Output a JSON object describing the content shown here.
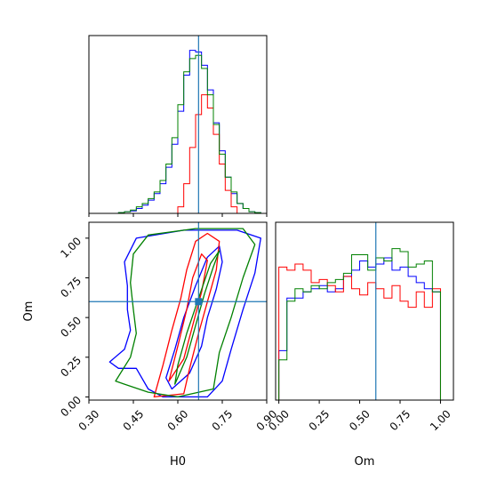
{
  "chart_data": {
    "type": "corner",
    "title": "",
    "parameters": [
      "H0",
      "Om"
    ],
    "truths": {
      "H0": 0.67,
      "Om": 0.6
    },
    "truth_color": "#1f77b4",
    "series": [
      {
        "color": "#0000ff"
      },
      {
        "color": "#ff0000"
      },
      {
        "color": "#008000"
      }
    ],
    "panels": [
      {
        "id": "hist-H0",
        "kind": "histogram",
        "param": "H0",
        "xlim": [
          0.3,
          0.9
        ],
        "ylim": [
          0,
          1.08
        ],
        "bin_edges": [
          0.4,
          0.42,
          0.44,
          0.46,
          0.48,
          0.5,
          0.52,
          0.54,
          0.56,
          0.58,
          0.6,
          0.62,
          0.64,
          0.66,
          0.68,
          0.7,
          0.72,
          0.74,
          0.76,
          0.78,
          0.8,
          0.82,
          0.84,
          0.86,
          0.88
        ],
        "series_values": [
          [
            0.005,
            0.01,
            0.015,
            0.03,
            0.05,
            0.08,
            0.12,
            0.18,
            0.28,
            0.42,
            0.62,
            0.84,
            0.99,
            0.98,
            0.9,
            0.75,
            0.55,
            0.38,
            0.22,
            0.12,
            0.06,
            0.03,
            0.01,
            0.005
          ],
          [
            0.0,
            0.0,
            0.0,
            0.0,
            0.0,
            0.0,
            0.0,
            0.0,
            0.0,
            0.0,
            0.04,
            0.18,
            0.4,
            0.6,
            0.72,
            0.64,
            0.48,
            0.3,
            0.14,
            0.04,
            0.0,
            0.0,
            0.0,
            0.0
          ],
          [
            0.005,
            0.01,
            0.02,
            0.04,
            0.06,
            0.09,
            0.13,
            0.2,
            0.3,
            0.46,
            0.66,
            0.86,
            0.94,
            0.96,
            0.88,
            0.72,
            0.54,
            0.36,
            0.22,
            0.13,
            0.06,
            0.03,
            0.01,
            0.005
          ]
        ]
      },
      {
        "id": "contour-H0-Om",
        "kind": "contour",
        "xparam": "H0",
        "yparam": "Om",
        "xlim": [
          0.3,
          0.9
        ],
        "ylim": [
          -0.02,
          1.1
        ],
        "xticks": [
          "0.30",
          "0.45",
          "0.60",
          "0.75",
          "0.90"
        ],
        "xtick_values": [
          0.3,
          0.45,
          0.6,
          0.75,
          0.9
        ],
        "yticks": [
          "0.00",
          "0.25",
          "0.50",
          "0.75",
          "1.00"
        ],
        "ytick_values": [
          0.0,
          0.25,
          0.5,
          0.75,
          1.0
        ],
        "xlabel": "H0",
        "ylabel": "Om",
        "series_contours": [
          [
            [
              [
                0.37,
                0.22
              ],
              [
                0.42,
                0.3
              ],
              [
                0.44,
                0.42
              ],
              [
                0.43,
                0.55
              ],
              [
                0.43,
                0.7
              ],
              [
                0.42,
                0.85
              ],
              [
                0.46,
                1.0
              ],
              [
                0.62,
                1.05
              ],
              [
                0.8,
                1.05
              ],
              [
                0.88,
                1.0
              ],
              [
                0.86,
                0.78
              ],
              [
                0.82,
                0.55
              ],
              [
                0.78,
                0.3
              ],
              [
                0.75,
                0.1
              ],
              [
                0.7,
                0.0
              ],
              [
                0.55,
                0.0
              ],
              [
                0.5,
                0.05
              ],
              [
                0.46,
                0.18
              ],
              [
                0.4,
                0.18
              ],
              [
                0.37,
                0.22
              ]
            ],
            [
              [
                0.58,
                0.05
              ],
              [
                0.64,
                0.15
              ],
              [
                0.68,
                0.32
              ],
              [
                0.7,
                0.5
              ],
              [
                0.73,
                0.68
              ],
              [
                0.75,
                0.85
              ],
              [
                0.74,
                0.95
              ],
              [
                0.7,
                0.88
              ],
              [
                0.66,
                0.7
              ],
              [
                0.62,
                0.5
              ],
              [
                0.59,
                0.3
              ],
              [
                0.56,
                0.12
              ],
              [
                0.58,
                0.05
              ]
            ]
          ],
          [
            [
              [
                0.52,
                0.0
              ],
              [
                0.55,
                0.2
              ],
              [
                0.58,
                0.42
              ],
              [
                0.61,
                0.62
              ],
              [
                0.63,
                0.8
              ],
              [
                0.66,
                0.98
              ],
              [
                0.7,
                1.03
              ],
              [
                0.74,
                0.98
              ],
              [
                0.73,
                0.8
              ],
              [
                0.7,
                0.6
              ],
              [
                0.67,
                0.4
              ],
              [
                0.64,
                0.18
              ],
              [
                0.62,
                0.02
              ],
              [
                0.52,
                0.0
              ]
            ],
            [
              [
                0.57,
                0.1
              ],
              [
                0.6,
                0.32
              ],
              [
                0.63,
                0.55
              ],
              [
                0.65,
                0.75
              ],
              [
                0.68,
                0.9
              ],
              [
                0.7,
                0.86
              ],
              [
                0.68,
                0.66
              ],
              [
                0.65,
                0.45
              ],
              [
                0.62,
                0.24
              ],
              [
                0.57,
                0.1
              ]
            ]
          ],
          [
            [
              [
                0.39,
                0.1
              ],
              [
                0.44,
                0.25
              ],
              [
                0.46,
                0.4
              ],
              [
                0.45,
                0.55
              ],
              [
                0.44,
                0.72
              ],
              [
                0.45,
                0.9
              ],
              [
                0.5,
                1.02
              ],
              [
                0.66,
                1.06
              ],
              [
                0.82,
                1.06
              ],
              [
                0.86,
                0.96
              ],
              [
                0.82,
                0.75
              ],
              [
                0.78,
                0.5
              ],
              [
                0.74,
                0.28
              ],
              [
                0.72,
                0.05
              ],
              [
                0.6,
                0.0
              ],
              [
                0.5,
                0.03
              ],
              [
                0.42,
                0.08
              ],
              [
                0.39,
                0.1
              ]
            ],
            [
              [
                0.59,
                0.08
              ],
              [
                0.63,
                0.25
              ],
              [
                0.66,
                0.45
              ],
              [
                0.69,
                0.65
              ],
              [
                0.72,
                0.82
              ],
              [
                0.74,
                0.92
              ],
              [
                0.71,
                0.84
              ],
              [
                0.67,
                0.62
              ],
              [
                0.63,
                0.4
              ],
              [
                0.6,
                0.2
              ],
              [
                0.59,
                0.08
              ]
            ]
          ]
        ]
      },
      {
        "id": "hist-Om",
        "kind": "histogram",
        "param": "Om",
        "xlim": [
          -0.02,
          1.08
        ],
        "ylim": [
          0,
          1.15
        ],
        "xticks": [
          "0.00",
          "0.25",
          "0.50",
          "0.75",
          "1.00"
        ],
        "xtick_values": [
          0.0,
          0.25,
          0.5,
          0.75,
          1.0
        ],
        "xlabel": "Om",
        "bin_edges": [
          0.0,
          0.05,
          0.1,
          0.15,
          0.2,
          0.25,
          0.3,
          0.35,
          0.4,
          0.45,
          0.5,
          0.55,
          0.6,
          0.65,
          0.7,
          0.75,
          0.8,
          0.85,
          0.9,
          0.95,
          1.0
        ],
        "series_values": [
          [
            0.32,
            0.66,
            0.66,
            0.7,
            0.72,
            0.74,
            0.7,
            0.72,
            0.8,
            0.84,
            0.9,
            0.86,
            0.88,
            0.92,
            0.84,
            0.86,
            0.8,
            0.76,
            0.72,
            0.7
          ],
          [
            0.86,
            0.84,
            0.88,
            0.84,
            0.76,
            0.78,
            0.74,
            0.7,
            0.8,
            0.72,
            0.68,
            0.76,
            0.72,
            0.66,
            0.74,
            0.64,
            0.6,
            0.7,
            0.6,
            0.72
          ],
          [
            0.26,
            0.64,
            0.72,
            0.7,
            0.74,
            0.72,
            0.76,
            0.78,
            0.82,
            0.94,
            0.94,
            0.84,
            0.92,
            0.9,
            0.98,
            0.96,
            0.86,
            0.88,
            0.9,
            0.7
          ]
        ]
      }
    ]
  }
}
